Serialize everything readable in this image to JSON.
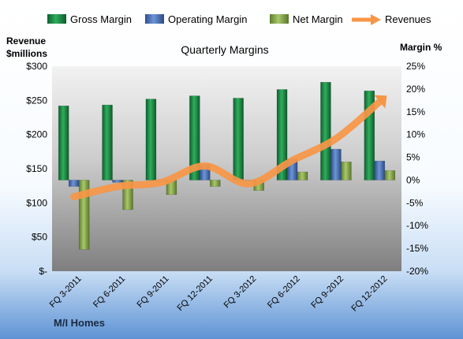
{
  "chart_data": {
    "type": "bar",
    "title": "Quarterly Margins",
    "left_axis_label_line1": "Revenue",
    "left_axis_label_line2": "$millions",
    "right_axis_label": "Margin %",
    "company": "M/I Homes",
    "categories": [
      "FQ 3-2011",
      "FQ 6-2011",
      "FQ 9-2011",
      "FQ 12-2011",
      "FQ 3-2012",
      "FQ 6-2012",
      "FQ 9-2012",
      "FQ 12-2012"
    ],
    "left_ticks": [
      "$-",
      "$50",
      "$100",
      "$150",
      "$200",
      "$250",
      "$300"
    ],
    "right_ticks": [
      "-20%",
      "-15%",
      "-10%",
      "-5%",
      "0%",
      "5%",
      "10%",
      "15%",
      "20%",
      "25%"
    ],
    "ylim_revenue": [
      0,
      300
    ],
    "ylim_margin": [
      -20,
      25
    ],
    "legend_position": "top",
    "series": [
      {
        "name": "Gross Margin",
        "axis": "margin",
        "kind": "bar",
        "color": "#1f8f4a",
        "values": [
          16.3,
          16.5,
          17.8,
          18.5,
          18.0,
          19.9,
          21.5,
          19.6
        ]
      },
      {
        "name": "Operating Margin",
        "axis": "margin",
        "kind": "bar",
        "color": "#4f77be",
        "values": [
          -1.4,
          -0.5,
          0.0,
          3.4,
          0.0,
          4.6,
          6.8,
          4.2
        ]
      },
      {
        "name": "Net Margin",
        "axis": "margin",
        "kind": "bar",
        "color": "#8db153",
        "values": [
          -15.2,
          -6.5,
          -3.2,
          -1.4,
          -2.3,
          1.8,
          4.0,
          2.1
        ]
      },
      {
        "name": "Revenues",
        "axis": "revenue",
        "kind": "line",
        "color": "#f79646",
        "values": [
          109,
          124,
          130,
          154,
          128,
          162,
          194,
          248
        ]
      }
    ]
  }
}
